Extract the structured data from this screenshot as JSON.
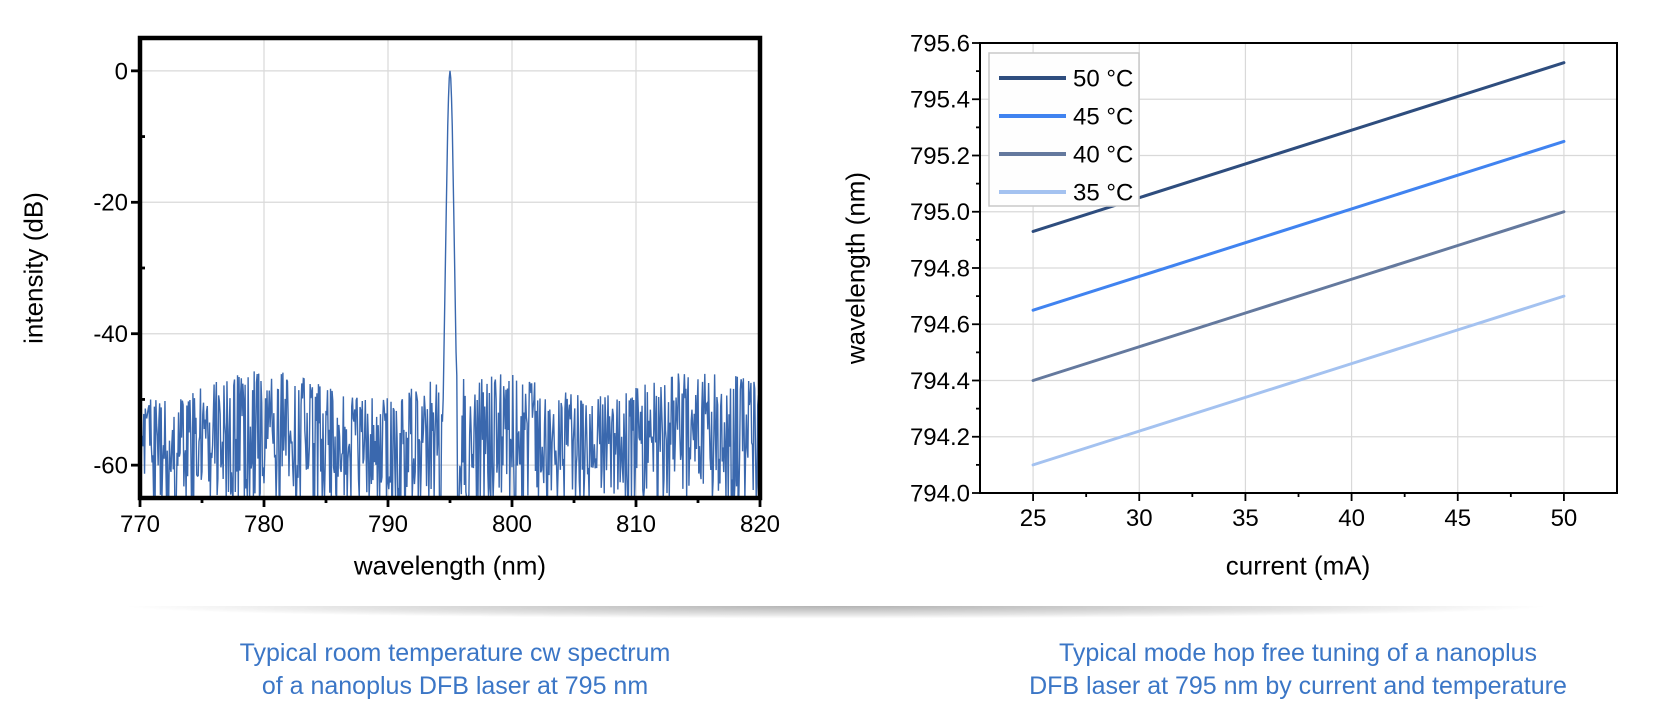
{
  "captions": {
    "color": "#3b76c6",
    "left": {
      "line1": "Typical room temperature cw spectrum",
      "line2": "of a nanoplus DFB laser at 795 nm"
    },
    "right": {
      "line1": "Typical mode hop free tuning of a nanoplus",
      "line2": "DFB laser at 795 nm by current and temperature"
    }
  },
  "colors": {
    "grid": "#d9d9d9",
    "frame": "#000000",
    "legend_border": "#c9c9c9",
    "legend_fill": "#fefefe",
    "divider_shadow": "rgba(0,0,0,0.30)"
  },
  "chart_data": [
    {
      "type": "line",
      "title": "",
      "xlabel": "wavelength (nm)",
      "ylabel": "intensity (dB)",
      "xlim": [
        770,
        820
      ],
      "ylim": [
        -65,
        5
      ],
      "grid": true,
      "xticks": [
        770,
        780,
        790,
        800,
        810,
        820
      ],
      "xtick_labels": [
        "770",
        "780",
        "790",
        "800",
        "810",
        "820"
      ],
      "xticks_minor": [
        775,
        785,
        795,
        805,
        815
      ],
      "yticks": [
        0,
        -20,
        -40,
        -60
      ],
      "ytick_labels": [
        "0",
        "-20",
        "-40",
        "-60"
      ],
      "yticks_minor": [
        -10,
        -30,
        -50
      ],
      "legend": null,
      "series": [
        {
          "name": "dfb-spectrum",
          "color": "#3a68ae",
          "kind": "noisy-spectrum",
          "peak": {
            "x": 795,
            "y": 0
          },
          "noise_floor": {
            "top_db": -48,
            "mean_db": -55,
            "bottom_db": -65
          },
          "note": "single-mode DFB laser spectrum: dense noise floor around -55 dB with one sharp lasing peak at 795 nm reaching 0 dB"
        }
      ]
    },
    {
      "type": "line",
      "title": "",
      "xlabel": "current (mA)",
      "ylabel": "wavelength (nm)",
      "xlim": [
        22.5,
        52.5
      ],
      "ylim": [
        794.0,
        795.6
      ],
      "grid": true,
      "xticks": [
        25,
        30,
        35,
        40,
        45,
        50
      ],
      "xtick_labels": [
        "25",
        "30",
        "35",
        "40",
        "45",
        "50"
      ],
      "xticks_minor": [
        27.5,
        32.5,
        37.5,
        42.5,
        47.5
      ],
      "yticks": [
        795.6,
        795.4,
        795.2,
        795.0,
        794.8,
        794.6,
        794.4,
        794.2,
        794.0
      ],
      "ytick_labels": [
        "795.6",
        "795.4",
        "795.2",
        "795.0",
        "794.8",
        "794.6",
        "794.4",
        "794.2",
        "794.0"
      ],
      "yticks_minor": [
        795.5,
        795.3,
        795.1,
        794.9,
        794.7,
        794.5,
        794.3,
        794.1
      ],
      "legend": {
        "position": "top-left",
        "entries": [
          "50 °C",
          "45 °C",
          "40 °C",
          "35 °C"
        ]
      },
      "series": [
        {
          "name": "50 °C",
          "color": "#2e4d7e",
          "x": [
            25,
            30,
            35,
            40,
            45,
            50
          ],
          "y": [
            794.93,
            795.05,
            795.17,
            795.29,
            795.41,
            795.53
          ]
        },
        {
          "name": "45 °C",
          "color": "#4083f0",
          "x": [
            25,
            30,
            35,
            40,
            45,
            50
          ],
          "y": [
            794.65,
            794.77,
            794.89,
            795.01,
            795.13,
            795.25
          ]
        },
        {
          "name": "40 °C",
          "color": "#64799e",
          "x": [
            25,
            30,
            35,
            40,
            45,
            50
          ],
          "y": [
            794.4,
            794.52,
            794.64,
            794.76,
            794.88,
            795.0
          ]
        },
        {
          "name": "35 °C",
          "color": "#a4c2f0",
          "x": [
            25,
            30,
            35,
            40,
            45,
            50
          ],
          "y": [
            794.1,
            794.22,
            794.34,
            794.46,
            794.58,
            794.7
          ]
        }
      ]
    }
  ]
}
